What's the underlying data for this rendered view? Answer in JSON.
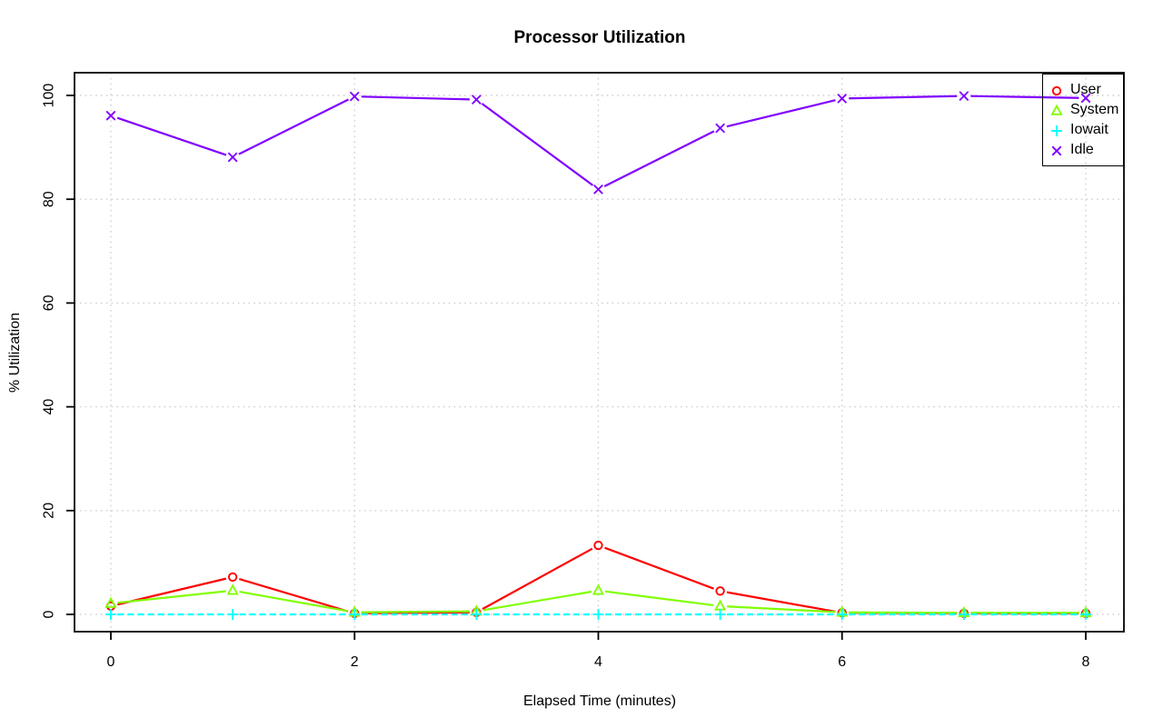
{
  "chart_data": {
    "type": "line",
    "title": "Processor Utilization",
    "xlabel": "Elapsed Time (minutes)",
    "ylabel": "% Utilization",
    "x": [
      0,
      1,
      2,
      3,
      4,
      5,
      6,
      7,
      8
    ],
    "series": [
      {
        "name": "User",
        "color": "#FF0000",
        "marker": "circle-marker",
        "line": "solid",
        "values": [
          1.6,
          7.2,
          0.2,
          0.4,
          13.3,
          4.5,
          0.3,
          0.2,
          0.2
        ]
      },
      {
        "name": "System",
        "color": "#80FF00",
        "marker": "triangle-marker",
        "line": "solid",
        "values": [
          2.1,
          4.6,
          0.4,
          0.6,
          4.6,
          1.6,
          0.4,
          0.3,
          0.3
        ]
      },
      {
        "name": "Iowait",
        "color": "#00FFFF",
        "marker": "plus-marker",
        "line": "dotted",
        "values": [
          0,
          0,
          0,
          0,
          0,
          0,
          0,
          0,
          0
        ]
      },
      {
        "name": "Idle",
        "color": "#8000FF",
        "marker": "x-marker",
        "line": "solid",
        "values": [
          96.1,
          88.1,
          99.8,
          99.2,
          81.9,
          93.7,
          99.4,
          99.9,
          99.5
        ]
      }
    ],
    "xticks": [
      0,
      2,
      4,
      6,
      8
    ],
    "yticks": [
      0,
      20,
      40,
      60,
      80,
      100
    ],
    "xlim": [
      0,
      8
    ],
    "ylim": [
      0,
      100
    ],
    "grid": true,
    "grid_color": "#CFCFCF",
    "axis_color": "#000000",
    "background": "#FFFFFF",
    "legend_position": "topright"
  }
}
